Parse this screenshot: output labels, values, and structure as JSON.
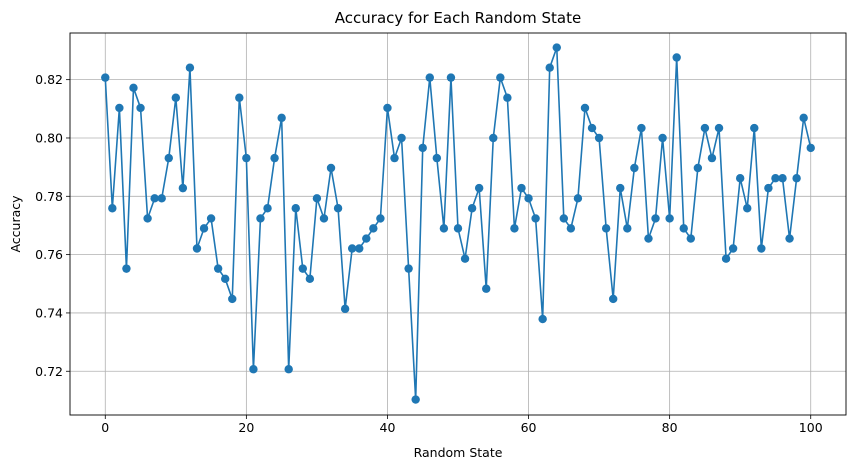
{
  "chart_data": {
    "type": "line",
    "title": "Accuracy for Each Random State",
    "xlabel": "Random State",
    "ylabel": "Accuracy",
    "xlim": [
      -5,
      105
    ],
    "ylim": [
      0.705,
      0.836
    ],
    "xticks": [
      0,
      20,
      40,
      60,
      80,
      100
    ],
    "yticks": [
      0.72,
      0.74,
      0.76,
      0.78,
      0.8,
      0.82
    ],
    "ytick_labels": [
      "0.72",
      "0.74",
      "0.76",
      "0.78",
      "0.80",
      "0.82"
    ],
    "grid": true,
    "marker": "circle",
    "color": "#1f77b4",
    "series": [
      {
        "name": "Accuracy",
        "x": [
          0,
          1,
          2,
          3,
          4,
          5,
          6,
          7,
          8,
          9,
          10,
          11,
          12,
          13,
          14,
          15,
          16,
          17,
          18,
          19,
          20,
          21,
          22,
          23,
          24,
          25,
          26,
          27,
          28,
          29,
          30,
          31,
          32,
          33,
          34,
          35,
          36,
          37,
          38,
          39,
          40,
          41,
          42,
          43,
          44,
          45,
          46,
          47,
          48,
          49,
          50,
          51,
          52,
          53,
          54,
          55,
          56,
          57,
          58,
          59,
          60,
          61,
          62,
          63,
          64,
          65,
          66,
          67,
          68,
          69,
          70,
          71,
          72,
          73,
          74,
          75,
          76,
          77,
          78,
          79,
          80,
          81,
          82,
          83,
          84,
          85,
          86,
          87,
          88,
          89,
          90,
          91,
          92,
          93,
          94,
          95,
          96,
          97,
          98,
          99,
          100
        ],
        "values": [
          0.8207,
          0.7759,
          0.8103,
          0.7552,
          0.8172,
          0.8103,
          0.7724,
          0.7793,
          0.7793,
          0.7931,
          0.8138,
          0.7828,
          0.8241,
          0.7621,
          0.769,
          0.7724,
          0.7552,
          0.7517,
          0.7448,
          0.8138,
          0.7931,
          0.7207,
          0.7724,
          0.7759,
          0.7931,
          0.8069,
          0.7207,
          0.7759,
          0.7552,
          0.7517,
          0.7793,
          0.7724,
          0.7897,
          0.7759,
          0.7414,
          0.7621,
          0.7621,
          0.7655,
          0.769,
          0.7724,
          0.8103,
          0.7931,
          0.8,
          0.7552,
          0.7103,
          0.7966,
          0.8207,
          0.7931,
          0.769,
          0.8207,
          0.769,
          0.7586,
          0.7759,
          0.7828,
          0.7483,
          0.8,
          0.8207,
          0.8138,
          0.769,
          0.7828,
          0.7793,
          0.7724,
          0.7379,
          0.8241,
          0.831,
          0.7724,
          0.769,
          0.7793,
          0.8103,
          0.8034,
          0.8,
          0.769,
          0.7448,
          0.7828,
          0.769,
          0.7897,
          0.8034,
          0.7655,
          0.7724,
          0.8,
          0.7724,
          0.8276,
          0.769,
          0.7655,
          0.7897,
          0.8034,
          0.7931,
          0.8034,
          0.7586,
          0.7621,
          0.7862,
          0.7759,
          0.8034,
          0.7621,
          0.7828,
          0.7862,
          0.7862,
          0.7655,
          0.7862,
          0.8069,
          0.7966
        ]
      }
    ]
  }
}
